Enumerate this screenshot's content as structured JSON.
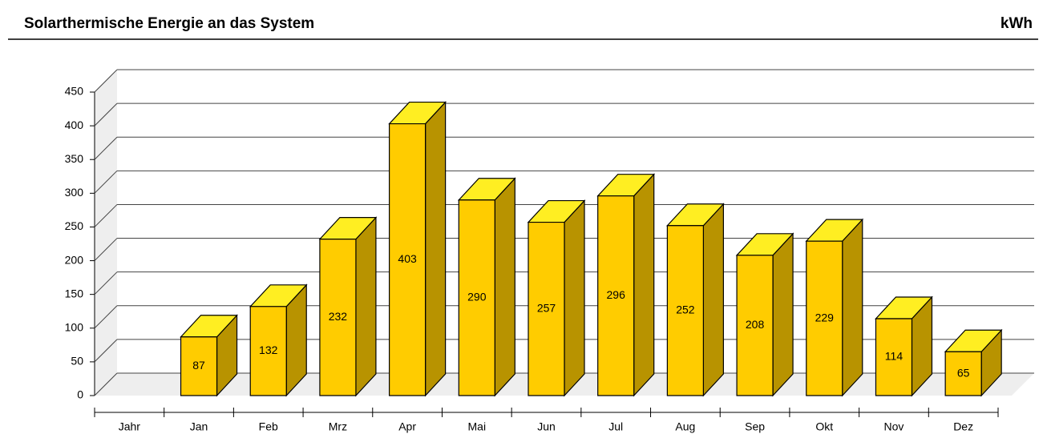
{
  "chart_data": {
    "type": "bar3d",
    "title": "Solarthermische Energie an das System",
    "unit": "kWh",
    "categories": [
      "Jahr",
      "Jan",
      "Feb",
      "Mrz",
      "Apr",
      "Mai",
      "Jun",
      "Jul",
      "Aug",
      "Sep",
      "Okt",
      "Nov",
      "Dez"
    ],
    "values": [
      null,
      87,
      132,
      232,
      403,
      290,
      257,
      296,
      252,
      208,
      229,
      114,
      65
    ],
    "color": "#ffcc00",
    "ylim": [
      0,
      450
    ],
    "yticks": [
      0,
      50,
      100,
      150,
      200,
      250,
      300,
      350,
      400,
      450
    ],
    "grid": true
  }
}
